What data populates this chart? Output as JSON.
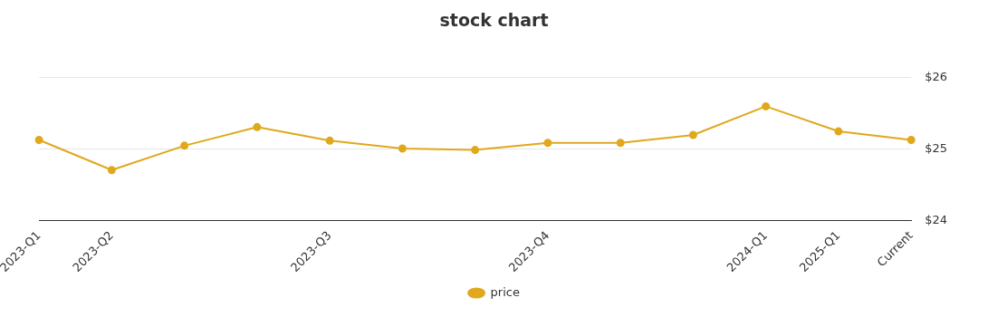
{
  "chart_data": {
    "type": "line",
    "title": "stock chart",
    "categories": [
      "2023-Q1",
      "2023-Q2",
      null,
      null,
      "2023-Q3",
      null,
      null,
      "2023-Q4",
      null,
      null,
      "2024-Q1",
      "2025-Q1",
      "Current"
    ],
    "series": [
      {
        "name": "price",
        "color": "#e0a81c",
        "values": [
          25.13,
          24.71,
          25.05,
          25.31,
          25.12,
          25.01,
          24.99,
          25.09,
          25.09,
          25.2,
          25.6,
          25.25,
          25.13
        ]
      }
    ],
    "ylim": [
      24,
      26
    ],
    "yticks": [
      {
        "value": 24,
        "label": "$24"
      },
      {
        "value": 25,
        "label": "$25"
      },
      {
        "value": 26,
        "label": "$26"
      }
    ],
    "grid": "y",
    "legend": "bottom",
    "marker": "circle",
    "line_style": "solid"
  }
}
